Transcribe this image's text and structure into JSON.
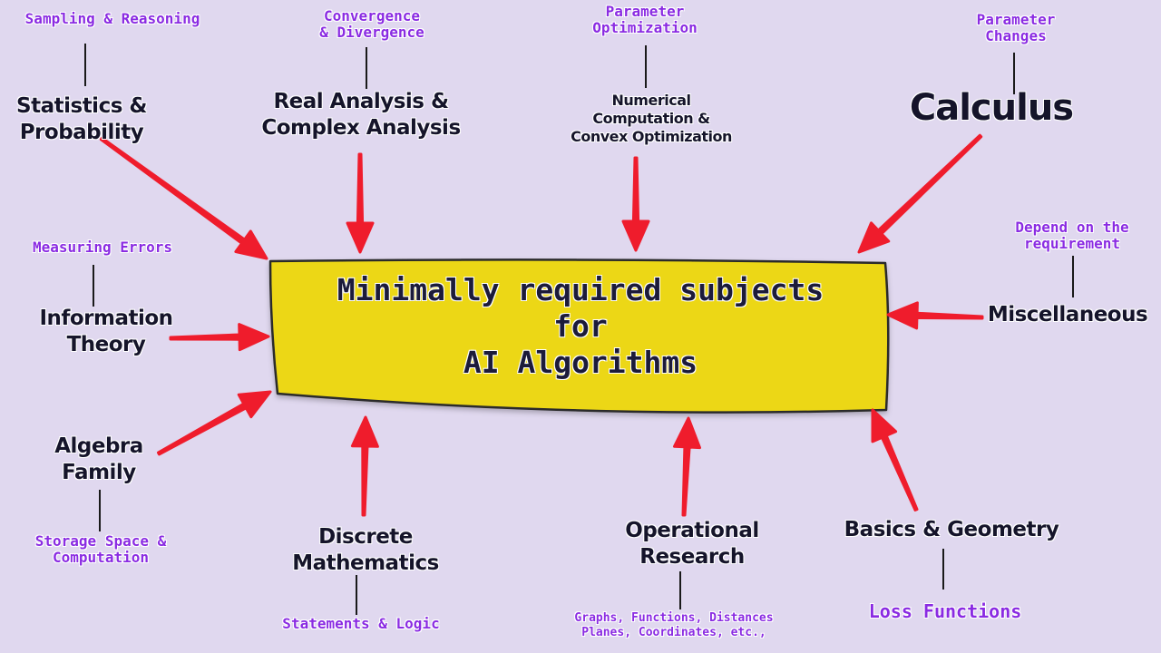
{
  "central": {
    "lines": [
      "Minimally required subjects",
      "for",
      "AI Algorithms"
    ],
    "fill": "#ecd719",
    "stroke": "#2a2a2a"
  },
  "arrow_color": "#ef1c2c",
  "subjects": [
    {
      "id": "stats",
      "lines": [
        "Statistics &",
        "Probability"
      ],
      "note": [
        "Sampling & Reasoning"
      ]
    },
    {
      "id": "analysis",
      "lines": [
        "Real Analysis &",
        "Complex Analysis"
      ],
      "note": [
        "Convergence",
        "& Divergence"
      ]
    },
    {
      "id": "numerical",
      "lines": [
        "Numerical",
        "Computation  &",
        "Convex Optimization"
      ],
      "note": [
        "Parameter",
        "Optimization"
      ]
    },
    {
      "id": "calculus",
      "lines": [
        "Calculus"
      ],
      "note": [
        "Parameter",
        "Changes"
      ]
    },
    {
      "id": "info",
      "lines": [
        "Information",
        "Theory"
      ],
      "note": [
        "Measuring Errors"
      ]
    },
    {
      "id": "misc",
      "lines": [
        "Miscellaneous"
      ],
      "note": [
        "Depend on the",
        "requirement"
      ]
    },
    {
      "id": "algebra",
      "lines": [
        "Algebra",
        "Family"
      ],
      "note": [
        "Storage Space &",
        "Computation"
      ]
    },
    {
      "id": "discrete",
      "lines": [
        "Discrete",
        "Mathematics"
      ],
      "note": [
        "Statements & Logic"
      ]
    },
    {
      "id": "or",
      "lines": [
        "Operational",
        "Research"
      ],
      "note": [
        "Graphs, Functions, Distances",
        "Planes, Coordinates, etc.,"
      ]
    },
    {
      "id": "geometry",
      "lines": [
        "Basics & Geometry"
      ],
      "note": [
        "Loss Functions"
      ]
    }
  ]
}
